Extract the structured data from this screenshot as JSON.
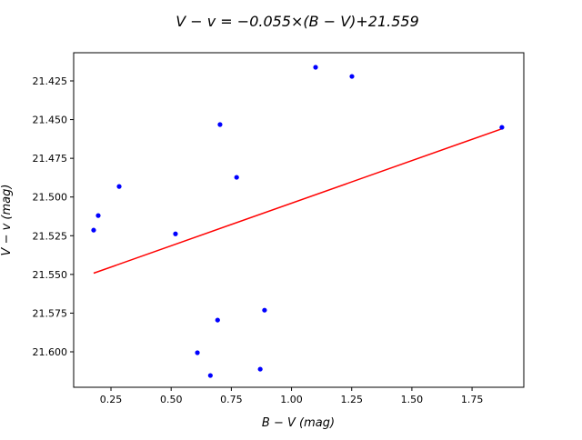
{
  "chart_data": {
    "type": "scatter",
    "title": "V − v = −0.055×(B − V)+21.559",
    "xlabel": "B − V  (mag)",
    "ylabel": "V − v  (mag)",
    "xlim": [
      0.095,
      1.965
    ],
    "ylim": [
      21.6229,
      21.4068
    ],
    "y_inverted": true,
    "grid": false,
    "xticks": [
      0.25,
      0.5,
      0.75,
      1.0,
      1.25,
      1.5,
      1.75
    ],
    "xtick_labels": [
      "0.25",
      "0.50",
      "0.75",
      "1.00",
      "1.25",
      "1.50",
      "1.75"
    ],
    "yticks": [
      21.425,
      21.45,
      21.475,
      21.5,
      21.525,
      21.55,
      21.575,
      21.6
    ],
    "ytick_labels": [
      "21.425",
      "21.450",
      "21.475",
      "21.500",
      "21.525",
      "21.550",
      "21.575",
      "21.600"
    ],
    "points": {
      "color": "#0000ff",
      "x": [
        1.1,
        1.251,
        0.703,
        1.874,
        0.772,
        0.284,
        0.197,
        0.178,
        0.518,
        0.888,
        0.693,
        0.609,
        0.87,
        0.663
      ],
      "y": [
        21.4162,
        21.4221,
        21.4532,
        21.455,
        21.4873,
        21.4932,
        21.512,
        21.5214,
        21.5238,
        21.5731,
        21.5795,
        21.6006,
        21.6112,
        21.6153
      ]
    },
    "fit": {
      "color": "#ff0000",
      "slope": -0.055,
      "intercept": 21.559,
      "x_range": [
        0.178,
        1.874
      ]
    }
  }
}
